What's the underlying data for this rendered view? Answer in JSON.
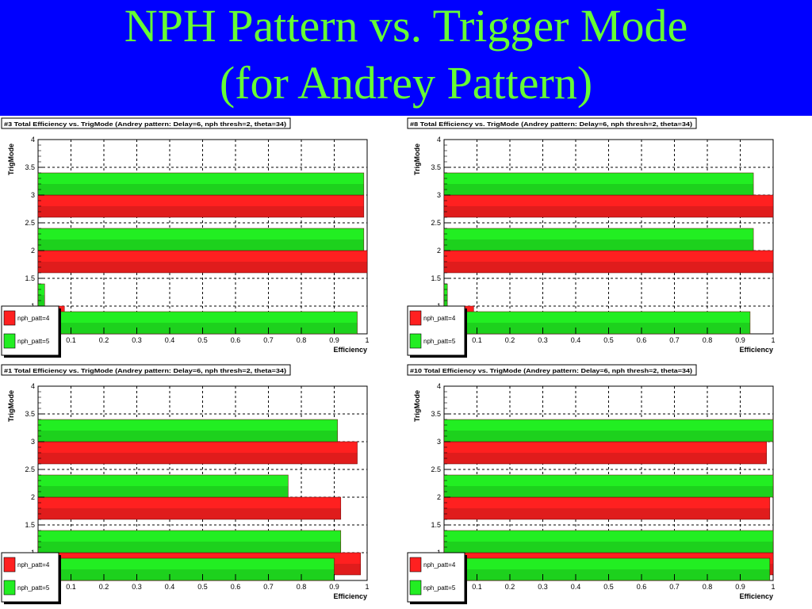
{
  "slide": {
    "title_line1": "NPH Pattern vs. Trigger Mode",
    "title_line2": "(for Andrey Pattern)"
  },
  "colors": {
    "background_band": "#0000ff",
    "title_text": "#66ff33",
    "series_red": "#ff2020",
    "series_green": "#22ee22"
  },
  "chart_data": [
    {
      "type": "bar",
      "orientation": "horizontal",
      "title": "#3 Total Efficiency vs. TrigMode (Andrey pattern: Delay=6, nph thresh=2,  theta=34)",
      "xlabel": "Efficiency",
      "ylabel": "TrigMode",
      "xlim": [
        0,
        1
      ],
      "ylim": [
        0.5,
        4
      ],
      "xticks": [
        "0.1",
        "0.2",
        "0.3",
        "0.4",
        "0.5",
        "0.6",
        "0.7",
        "0.8",
        "0.9",
        "1"
      ],
      "yticks": [
        "0.5",
        "1",
        "1.5",
        "2",
        "2.5",
        "3",
        "3.5",
        "4"
      ],
      "grid": true,
      "legend": "bottom-left",
      "series": [
        {
          "name": "nph_patt=4",
          "x": [
            0.5,
            1.0,
            2.0,
            3.0
          ],
          "values": [
            0.99,
            0.08,
            1.0,
            0.99
          ]
        },
        {
          "name": "nph_patt=5",
          "x": [
            0.5,
            1.0,
            2.0,
            3.0
          ],
          "values": [
            0.97,
            0.02,
            0.99,
            0.99
          ]
        }
      ]
    },
    {
      "type": "bar",
      "orientation": "horizontal",
      "title": "#8 Total Efficiency vs. TrigMode (Andrey pattern: Delay=6, nph thresh=2,  theta=34)",
      "xlabel": "Efficiency",
      "ylabel": "TrigMode",
      "xlim": [
        0,
        1
      ],
      "ylim": [
        0.5,
        4
      ],
      "xticks": [
        "0.1",
        "0.2",
        "0.3",
        "0.4",
        "0.5",
        "0.6",
        "0.7",
        "0.8",
        "0.9",
        "1"
      ],
      "yticks": [
        "0.5",
        "1",
        "1.5",
        "2",
        "2.5",
        "3",
        "3.5",
        "4"
      ],
      "grid": true,
      "legend": "bottom-left",
      "series": [
        {
          "name": "nph_patt=4",
          "x": [
            0.5,
            1.0,
            2.0,
            3.0
          ],
          "values": [
            1.0,
            0.09,
            1.0,
            1.0
          ]
        },
        {
          "name": "nph_patt=5",
          "x": [
            0.5,
            1.0,
            2.0,
            3.0
          ],
          "values": [
            0.93,
            0.01,
            0.94,
            0.94
          ]
        }
      ]
    },
    {
      "type": "bar",
      "orientation": "horizontal",
      "title": "#1 Total Efficiency vs. TrigMode (Andrey pattern: Delay=6, nph thresh=2,  theta=34)",
      "xlabel": "Efficiency",
      "ylabel": "TrigMode",
      "xlim": [
        0,
        1
      ],
      "ylim": [
        0.5,
        4
      ],
      "xticks": [
        "0.1",
        "0.2",
        "0.3",
        "0.4",
        "0.5",
        "0.6",
        "0.7",
        "0.8",
        "0.9",
        "1"
      ],
      "yticks": [
        "0.5",
        "1",
        "1.5",
        "2",
        "2.5",
        "3",
        "3.5",
        "4"
      ],
      "grid": true,
      "legend": "bottom-left",
      "series": [
        {
          "name": "nph_patt=4",
          "x": [
            0.5,
            1.0,
            2.0,
            3.0
          ],
          "values": [
            0.97,
            0.98,
            0.92,
            0.97
          ]
        },
        {
          "name": "nph_patt=5",
          "x": [
            0.5,
            1.0,
            2.0,
            3.0
          ],
          "values": [
            0.9,
            0.92,
            0.76,
            0.91
          ]
        }
      ]
    },
    {
      "type": "bar",
      "orientation": "horizontal",
      "title": "#10 Total Efficiency vs. TrigMode (Andrey pattern: Delay=6, nph thresh=2, theta=34)",
      "xlabel": "Efficiency",
      "ylabel": "TrigMode",
      "xlim": [
        0,
        1
      ],
      "ylim": [
        0.5,
        4
      ],
      "xticks": [
        "0.1",
        "0.2",
        "0.3",
        "0.4",
        "0.5",
        "0.6",
        "0.7",
        "0.8",
        "0.9",
        "1"
      ],
      "yticks": [
        "0.5",
        "1",
        "1.5",
        "2",
        "2.5",
        "3",
        "3.5",
        "4"
      ],
      "grid": true,
      "legend": "bottom-left",
      "series": [
        {
          "name": "nph_patt=4",
          "x": [
            0.5,
            1.0,
            2.0,
            3.0
          ],
          "values": [
            0.96,
            1.0,
            0.99,
            0.98
          ]
        },
        {
          "name": "nph_patt=5",
          "x": [
            0.5,
            1.0,
            2.0,
            3.0
          ],
          "values": [
            0.99,
            1.0,
            1.0,
            1.0
          ]
        }
      ]
    }
  ]
}
